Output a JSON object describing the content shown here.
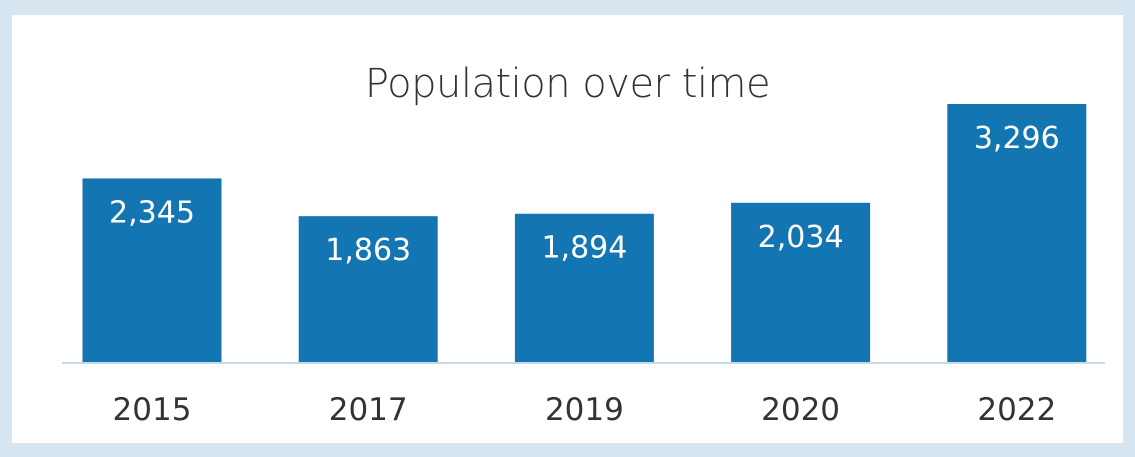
{
  "chart_data": {
    "type": "bar",
    "title": "Population over time",
    "categories": [
      "2015",
      "2017",
      "2019",
      "2020",
      "2022"
    ],
    "values": [
      2345,
      1863,
      1894,
      2034,
      3296
    ],
    "value_labels": [
      "2,345",
      "1,863",
      "1,894",
      "2,034",
      "3,296"
    ],
    "xlabel": "",
    "ylabel": "",
    "ylim": [
      0,
      3296
    ],
    "grid": false,
    "bar_color": "#1475b3",
    "axis_color": "#c5d9e8"
  }
}
